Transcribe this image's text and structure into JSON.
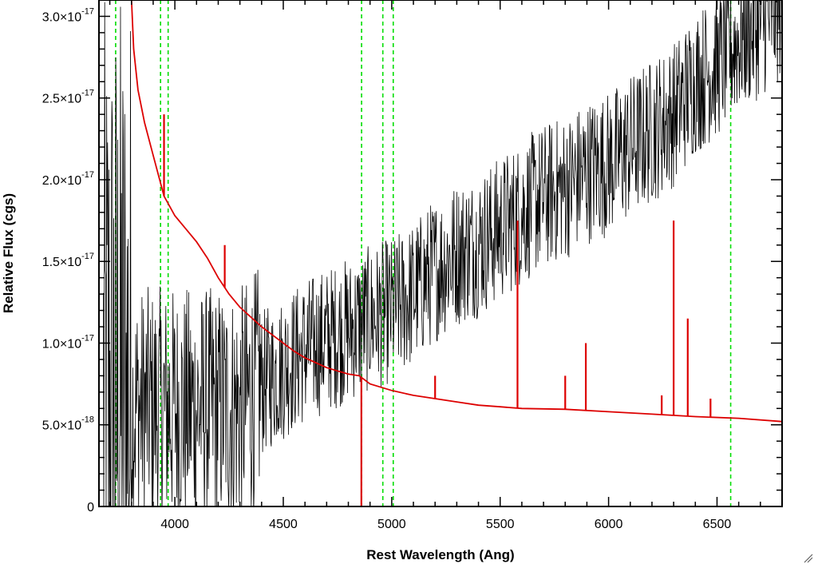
{
  "chart_data": {
    "type": "line",
    "xlabel": "Rest Wavelength (Ang)",
    "ylabel": "Relative Flux (cgs)",
    "xlim": [
      3650,
      6800
    ],
    "ylim": [
      0,
      3.1e-17
    ],
    "grid": false,
    "x_ticks": [
      {
        "value": 4000,
        "label": "4000"
      },
      {
        "value": 4500,
        "label": "4500"
      },
      {
        "value": 5000,
        "label": "5000"
      },
      {
        "value": 5500,
        "label": "5500"
      },
      {
        "value": 6000,
        "label": "6000"
      },
      {
        "value": 6500,
        "label": "6500"
      }
    ],
    "y_ticks": [
      {
        "value": 0,
        "label": "0",
        "exp": ""
      },
      {
        "value": 5e-18,
        "label": "5.0×10",
        "exp": "-18"
      },
      {
        "value": 1e-17,
        "label": "1.0×10",
        "exp": "-17"
      },
      {
        "value": 1.5e-17,
        "label": "1.5×10",
        "exp": "-17"
      },
      {
        "value": 2e-17,
        "label": "2.0×10",
        "exp": "-17"
      },
      {
        "value": 2.5e-17,
        "label": "2.5×10",
        "exp": "-17"
      },
      {
        "value": 3e-17,
        "label": "3.0×10",
        "exp": "-17"
      }
    ],
    "reference_lines": {
      "color": "#00dd00",
      "style": "dashed",
      "x": [
        3727,
        3934,
        3969,
        4861,
        4959,
        5007,
        6563
      ]
    },
    "series": [
      {
        "color": "#000000",
        "style": "noisy",
        "points": [
          [
            3670,
            5e-18
          ],
          [
            3750,
            6e-18
          ],
          [
            3850,
            6e-18
          ],
          [
            4000,
            6e-18
          ],
          [
            4100,
            6e-18
          ],
          [
            4200,
            6e-18
          ],
          [
            4300,
            6e-18
          ],
          [
            4400,
            7.5e-18
          ],
          [
            4500,
            8.5e-18
          ],
          [
            4600,
            9.5e-18
          ],
          [
            4700,
            1.02e-17
          ],
          [
            4800,
            1.08e-17
          ],
          [
            4900,
            1.15e-17
          ],
          [
            5000,
            1.2e-17
          ],
          [
            5100,
            1.3e-17
          ],
          [
            5200,
            1.45e-17
          ],
          [
            5300,
            1.55e-17
          ],
          [
            5400,
            1.6e-17
          ],
          [
            5500,
            1.7e-17
          ],
          [
            5600,
            1.8e-17
          ],
          [
            5700,
            1.9e-17
          ],
          [
            5800,
            1.95e-17
          ],
          [
            5900,
            2.05e-17
          ],
          [
            6000,
            2.1e-17
          ],
          [
            6100,
            2.2e-17
          ],
          [
            6200,
            2.3e-17
          ],
          [
            6300,
            2.4e-17
          ],
          [
            6400,
            2.6e-17
          ],
          [
            6500,
            2.7e-17
          ],
          [
            6600,
            2.85e-17
          ],
          [
            6700,
            2.95e-17
          ],
          [
            6800,
            3.05e-17
          ]
        ]
      },
      {
        "color": "#dd0000",
        "style": "line",
        "points": [
          [
            3800,
            3.1e-17
          ],
          [
            3810,
            2.8e-17
          ],
          [
            3830,
            2.55e-17
          ],
          [
            3860,
            2.35e-17
          ],
          [
            3900,
            2.15e-17
          ],
          [
            3950,
            1.9e-17
          ],
          [
            4000,
            1.78e-17
          ],
          [
            4050,
            1.7e-17
          ],
          [
            4100,
            1.62e-17
          ],
          [
            4150,
            1.52e-17
          ],
          [
            4200,
            1.4e-17
          ],
          [
            4250,
            1.3e-17
          ],
          [
            4300,
            1.22e-17
          ],
          [
            4350,
            1.16e-17
          ],
          [
            4400,
            1.1e-17
          ],
          [
            4450,
            1.05e-17
          ],
          [
            4500,
            1e-17
          ],
          [
            4550,
            9.5e-18
          ],
          [
            4600,
            9.1e-18
          ],
          [
            4650,
            8.8e-18
          ],
          [
            4700,
            8.5e-18
          ],
          [
            4750,
            8.3e-18
          ],
          [
            4800,
            8.1e-18
          ],
          [
            4850,
            8e-18
          ],
          [
            4900,
            7.5e-18
          ],
          [
            5000,
            7.1e-18
          ],
          [
            5100,
            6.8e-18
          ],
          [
            5200,
            6.6e-18
          ],
          [
            5300,
            6.4e-18
          ],
          [
            5400,
            6.2e-18
          ],
          [
            5500,
            6.1e-18
          ],
          [
            5600,
            6e-18
          ],
          [
            5800,
            5.95e-18
          ],
          [
            6000,
            5.8e-18
          ],
          [
            6200,
            5.65e-18
          ],
          [
            6400,
            5.5e-18
          ],
          [
            6600,
            5.4e-18
          ],
          [
            6800,
            5.2e-18
          ]
        ],
        "lines": [
          [
            3950,
            2.4e-17
          ],
          [
            4230,
            1.6e-17
          ],
          [
            4860,
            -1e-18
          ],
          [
            5200,
            8e-18
          ],
          [
            5580,
            1.75e-17
          ],
          [
            5800,
            8e-18
          ],
          [
            5895,
            1e-17
          ],
          [
            6300,
            1.75e-17
          ],
          [
            6365,
            1.15e-17
          ],
          [
            6245,
            6.8e-18
          ],
          [
            6470,
            6.6e-18
          ]
        ]
      }
    ]
  }
}
